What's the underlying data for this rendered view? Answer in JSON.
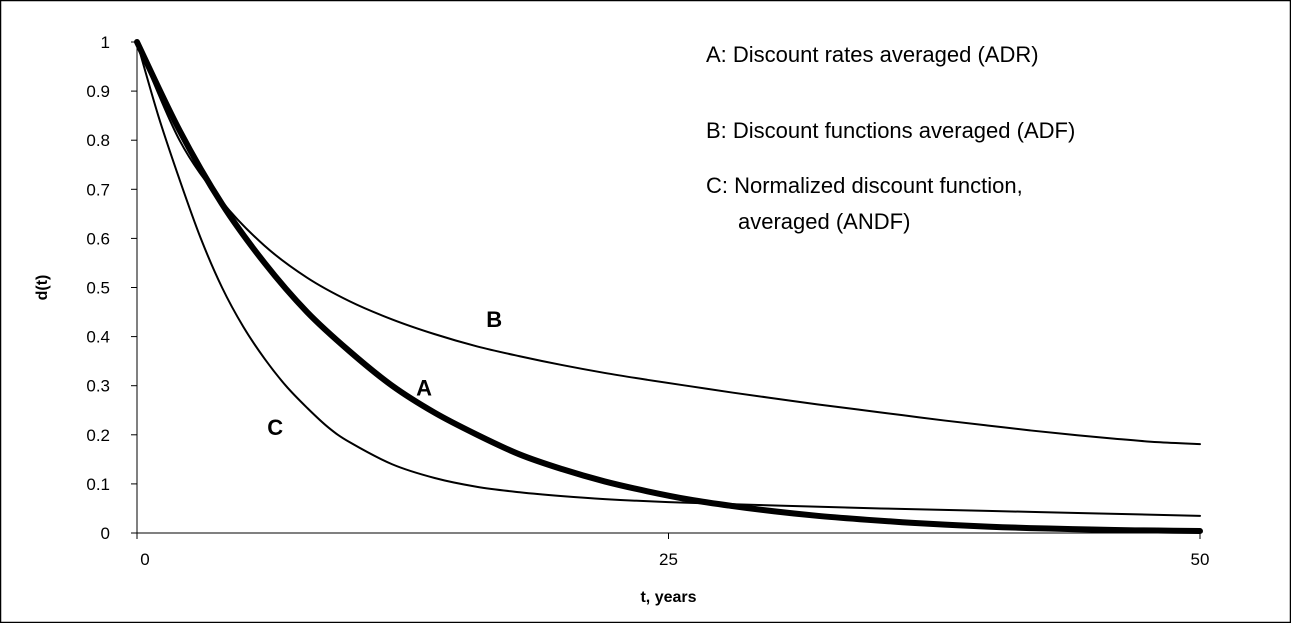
{
  "chart_data": {
    "type": "line",
    "title": "",
    "xlabel": "t, years",
    "ylabel": "d(t)",
    "xlim": [
      0,
      50
    ],
    "ylim": [
      0,
      1
    ],
    "x_ticks": [
      "0",
      "25",
      "50"
    ],
    "y_ticks": [
      "0",
      "0.1",
      "0.2",
      "0.3",
      "0.4",
      "0.5",
      "0.6",
      "0.7",
      "0.8",
      "0.9",
      "1"
    ],
    "grid": false,
    "legend": [
      "A: Discount rates averaged (ADR)",
      "B: Discount functions averaged (ADF)",
      "C: Normalized discount function,",
      "averaged (ANDF)"
    ],
    "series": [
      {
        "name": "A",
        "x": [
          0,
          2,
          4,
          6,
          8,
          10,
          12,
          14,
          16,
          18,
          20,
          22,
          24,
          26,
          28,
          30,
          32,
          34,
          36,
          38,
          40,
          42,
          44,
          46,
          48,
          50
        ],
        "y": [
          1.0,
          0.82,
          0.67,
          0.55,
          0.45,
          0.37,
          0.3,
          0.245,
          0.2,
          0.16,
          0.13,
          0.105,
          0.085,
          0.068,
          0.055,
          0.044,
          0.035,
          0.028,
          0.022,
          0.017,
          0.013,
          0.01,
          0.008,
          0.006,
          0.005,
          0.004
        ],
        "color": "#000000",
        "stroke": "thick"
      },
      {
        "name": "B",
        "x": [
          0,
          2,
          4,
          6,
          8,
          10,
          12,
          14,
          16,
          18,
          20,
          22,
          24,
          26,
          28,
          30,
          32,
          34,
          36,
          38,
          40,
          42,
          44,
          46,
          48,
          50
        ],
        "y": [
          1.0,
          0.8,
          0.675,
          0.585,
          0.52,
          0.472,
          0.435,
          0.405,
          0.38,
          0.36,
          0.342,
          0.326,
          0.312,
          0.299,
          0.286,
          0.274,
          0.262,
          0.251,
          0.24,
          0.229,
          0.219,
          0.209,
          0.2,
          0.192,
          0.185,
          0.181
        ],
        "color": "#000000",
        "stroke": "thin"
      },
      {
        "name": "C",
        "x": [
          0,
          1,
          2,
          3,
          4,
          5,
          6,
          7,
          8,
          9,
          10,
          12,
          14,
          16,
          18,
          20,
          22,
          25,
          30,
          35,
          40,
          45,
          50
        ],
        "y": [
          1.0,
          0.85,
          0.72,
          0.6,
          0.5,
          0.42,
          0.355,
          0.3,
          0.255,
          0.215,
          0.185,
          0.14,
          0.112,
          0.094,
          0.083,
          0.075,
          0.069,
          0.063,
          0.056,
          0.05,
          0.045,
          0.04,
          0.035
        ],
        "color": "#000000",
        "stroke": "thin"
      }
    ],
    "annotations": [
      {
        "text": "A",
        "x": 13.5,
        "y": 0.28
      },
      {
        "text": "B",
        "x": 16.8,
        "y": 0.42
      },
      {
        "text": "C",
        "x": 6.5,
        "y": 0.2
      }
    ]
  }
}
